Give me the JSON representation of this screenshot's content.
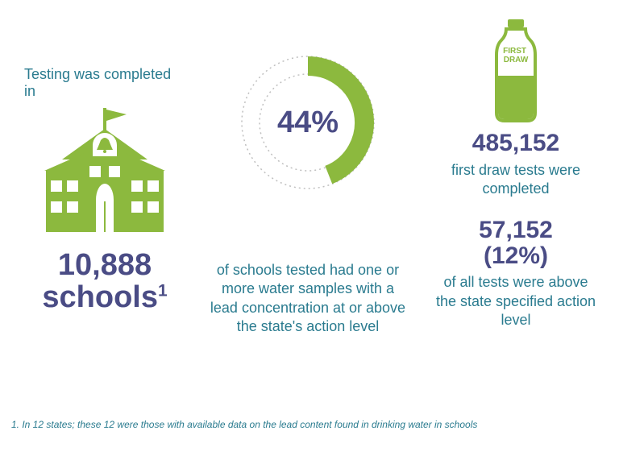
{
  "colors": {
    "green": "#8cb93e",
    "purple": "#4a4c85",
    "teal": "#2a7b8f",
    "dotted": "#bfbfbf",
    "white": "#ffffff"
  },
  "col1": {
    "lead": "Testing was completed in",
    "lead_fontsize": 18,
    "stat_number": "10,888",
    "stat_label": "schools",
    "stat_sup": "1",
    "stat_fontsize": 38
  },
  "donut": {
    "percent": 44,
    "center_label": "44%",
    "center_fontsize": 38,
    "outer_radius": 82,
    "ring_width_filled": 24,
    "ring_width_empty": 10,
    "start_angle_deg": -90,
    "caption": "of schools tested had one or more water samples with a lead concentration at or above the state's action level",
    "caption_fontsize": 18
  },
  "col3": {
    "bottle_label": "FIRST DRAW",
    "bottle_label_fontsize": 10,
    "tests_number": "485,152",
    "tests_caption": "first draw tests were completed",
    "above_number": "57,152",
    "above_pct": "(12%)",
    "above_caption": "of all tests were above the state specified action level",
    "stat_fontsize": 30,
    "caption_fontsize": 18
  },
  "footnote": {
    "text": "1. In 12 states; these 12 were those with available data on the lead content found in drinking water in schools",
    "fontsize": 12
  }
}
